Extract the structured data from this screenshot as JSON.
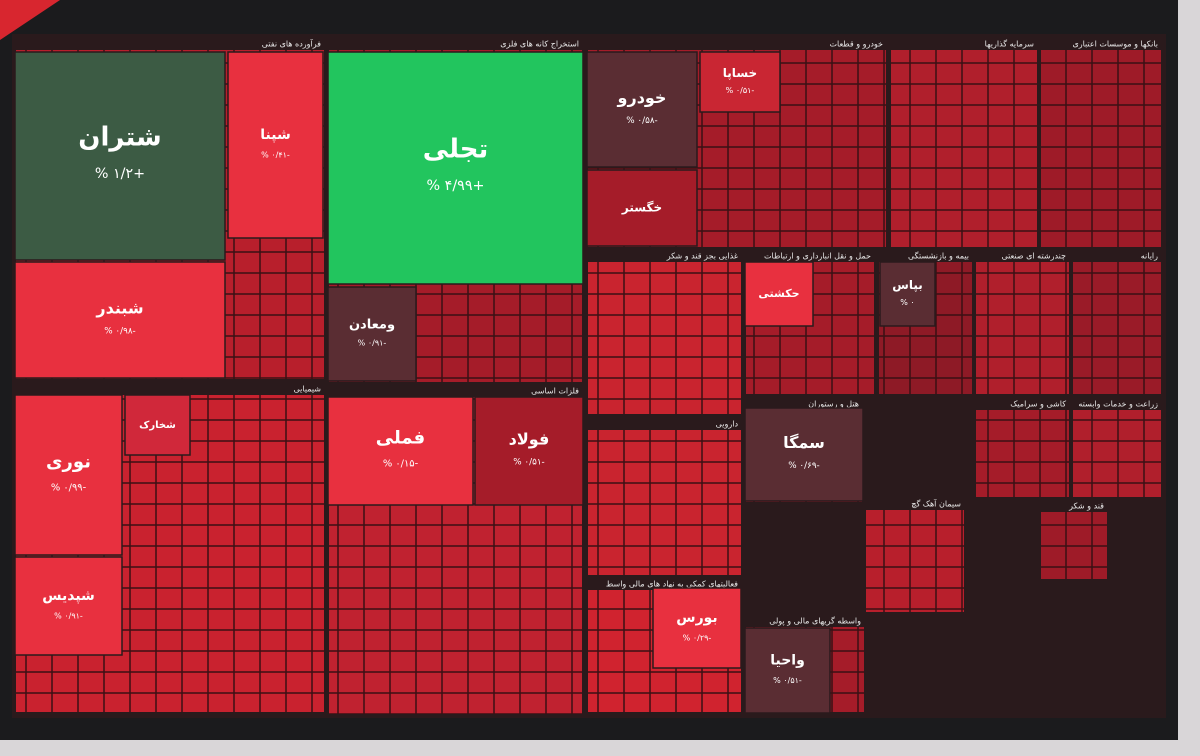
{
  "sectors": [
    {
      "title": "فرآورده های نفتی",
      "tiles": [
        {
          "name": "شتران",
          "change": "+۱/۲ %"
        },
        {
          "name": "شبندر",
          "change": "-۰/۹۸ %"
        },
        {
          "name": "شپنا",
          "change": "-۰/۴۱ %"
        }
      ]
    },
    {
      "title": "استخراج کانه های فلزی",
      "tiles": [
        {
          "name": "تجلی",
          "change": "+۴/۹۹ %"
        },
        {
          "name": "ومعادن",
          "change": "-۰/۹۱ %"
        }
      ]
    },
    {
      "title": "خودرو و قطعات",
      "tiles": [
        {
          "name": "خودرو",
          "change": "-۰/۵۸ %"
        },
        {
          "name": "خساپا",
          "change": "-۰/۵۱ %"
        },
        {
          "name": "خگستر"
        }
      ]
    },
    {
      "title": "سرمایه گذاریها",
      "tiles": []
    },
    {
      "title": "بانکها و موسسات اعتباری",
      "tiles": []
    },
    {
      "title": "شیمیایی",
      "tiles": [
        {
          "name": "نوری",
          "change": "-۰/۹۹ %"
        },
        {
          "name": "شپدیس",
          "change": "-۰/۹۱ %"
        },
        {
          "name": "شخارک"
        }
      ]
    },
    {
      "title": "فلزات اساسی",
      "tiles": [
        {
          "name": "فملی",
          "change": "-۰/۱۵ %"
        },
        {
          "name": "فولاد",
          "change": "-۰/۵۱ %"
        }
      ]
    },
    {
      "title": "غذایی بجز قند و شکر",
      "tiles": []
    },
    {
      "title": "حمل و نقل انبارداری و ارتباطات",
      "tiles": [
        {
          "name": "حکشتی"
        }
      ]
    },
    {
      "title": "بیمه و بازنشستگی",
      "tiles": [
        {
          "name": "بپاس",
          "change": "۰ %"
        }
      ]
    },
    {
      "title": "چندرشته ای صنعتی",
      "tiles": []
    },
    {
      "title": "رایانه",
      "tiles": []
    },
    {
      "title": "هتل و رستوران",
      "tiles": [
        {
          "name": "سمگا",
          "change": "-۰/۶۹ %"
        }
      ]
    },
    {
      "title": "دارویی",
      "tiles": []
    },
    {
      "title": "فعالیتهای کمکی به نهاد های مالی واسط",
      "tiles": [
        {
          "name": "بورس",
          "change": "-۰/۲۹ %"
        }
      ]
    },
    {
      "title": "واسطه گریهای مالی و پولی",
      "tiles": [
        {
          "name": "واحیا",
          "change": "-۰/۵۱ %"
        }
      ]
    },
    {
      "title": "سیمان آهک گچ",
      "tiles": []
    },
    {
      "title": "کاشی و سرامیک",
      "tiles": []
    },
    {
      "title": "زراعت و خدمات وابسته",
      "tiles": []
    },
    {
      "title": "قند و شکر",
      "tiles": []
    }
  ]
}
